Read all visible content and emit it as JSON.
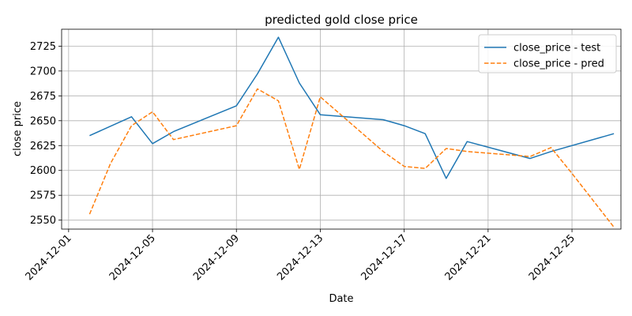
{
  "chart_data": {
    "type": "line",
    "title": "predicted gold close price",
    "xlabel": "Date",
    "ylabel": "close price",
    "x_axis": "date",
    "xlim": [
      "2024-11-30T16:00",
      "2024-12-27T08:00"
    ],
    "ylim": [
      2541,
      2742
    ],
    "grid": true,
    "legend_position": "top-right",
    "x_ticks": [
      "2024-12-01",
      "2024-12-05",
      "2024-12-09",
      "2024-12-13",
      "2024-12-17",
      "2024-12-21",
      "2024-12-25"
    ],
    "y_ticks": [
      2550,
      2575,
      2600,
      2625,
      2650,
      2675,
      2700,
      2725
    ],
    "series": [
      {
        "name": "close_price - test",
        "color": "#1f77b4",
        "dash": "solid",
        "points": [
          [
            "2024-12-02",
            2635
          ],
          [
            "2024-12-04",
            2654
          ],
          [
            "2024-12-05",
            2627
          ],
          [
            "2024-12-06",
            2639
          ],
          [
            "2024-12-09",
            2665
          ],
          [
            "2024-12-10",
            2697
          ],
          [
            "2024-12-11",
            2734
          ],
          [
            "2024-12-12",
            2688
          ],
          [
            "2024-12-13",
            2656
          ],
          [
            "2024-12-16",
            2651
          ],
          [
            "2024-12-17",
            2645
          ],
          [
            "2024-12-18",
            2637
          ],
          [
            "2024-12-19",
            2592
          ],
          [
            "2024-12-20",
            2629
          ],
          [
            "2024-12-23",
            2612
          ],
          [
            "2024-12-24",
            2619
          ],
          [
            "2024-12-27",
            2637
          ]
        ]
      },
      {
        "name": "close_price - pred",
        "color": "#ff7f0e",
        "dash": "dashed",
        "points": [
          [
            "2024-12-02",
            2556
          ],
          [
            "2024-12-03",
            2607
          ],
          [
            "2024-12-04",
            2645
          ],
          [
            "2024-12-05",
            2659
          ],
          [
            "2024-12-06",
            2631
          ],
          [
            "2024-12-09",
            2645
          ],
          [
            "2024-12-10",
            2682
          ],
          [
            "2024-12-11",
            2670
          ],
          [
            "2024-12-12",
            2601
          ],
          [
            "2024-12-13",
            2674
          ],
          [
            "2024-12-16",
            2619
          ],
          [
            "2024-12-17",
            2604
          ],
          [
            "2024-12-18",
            2602
          ],
          [
            "2024-12-19",
            2622
          ],
          [
            "2024-12-20",
            2619
          ],
          [
            "2024-12-23",
            2614
          ],
          [
            "2024-12-24",
            2623
          ],
          [
            "2024-12-25",
            2597
          ],
          [
            "2024-12-27",
            2543
          ]
        ]
      }
    ]
  }
}
